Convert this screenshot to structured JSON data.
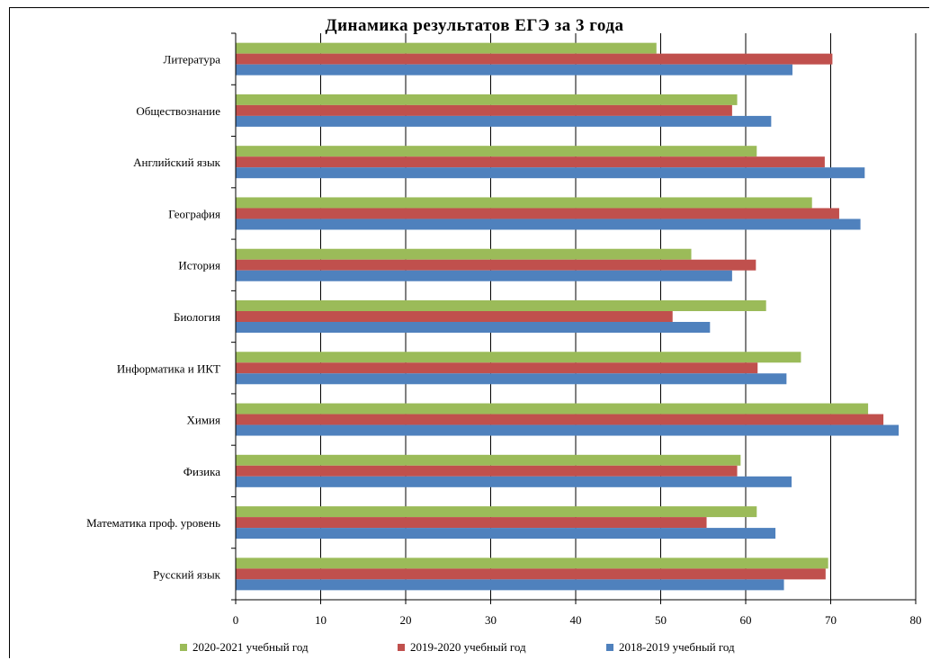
{
  "chart_data": {
    "type": "bar",
    "orientation": "horizontal",
    "title": "Динамика результатов ЕГЭ за 3 года",
    "categories": [
      "Литература",
      "Обществознание",
      "Английский язык",
      "География",
      "История",
      "Биология",
      "Информатика и ИКТ",
      "Химия",
      "Физика",
      "Математика проф. уровень",
      "Русский язык"
    ],
    "series": [
      {
        "name": "2020-2021 учебный год",
        "color": "#9BBB59",
        "values": [
          49.5,
          59,
          61.3,
          67.8,
          53.6,
          62.4,
          66.5,
          74.4,
          59.4,
          61.3,
          69.7
        ]
      },
      {
        "name": "2019-2020 учебный год",
        "color": "#C0504D",
        "values": [
          70.2,
          58.4,
          69.3,
          71,
          61.2,
          51.4,
          61.4,
          76.2,
          59,
          55.4,
          69.4
        ]
      },
      {
        "name": "2018-2019 учебный год",
        "color": "#4F81BD",
        "values": [
          65.5,
          63,
          74,
          73.5,
          58.4,
          55.8,
          64.8,
          78,
          65.4,
          63.5,
          64.5
        ]
      }
    ],
    "xlim": [
      0,
      80
    ],
    "xticks": [
      "0",
      "10",
      "20",
      "30",
      "40",
      "50",
      "60",
      "70",
      "80"
    ],
    "grid": "vertical",
    "legend_position": "bottom"
  }
}
